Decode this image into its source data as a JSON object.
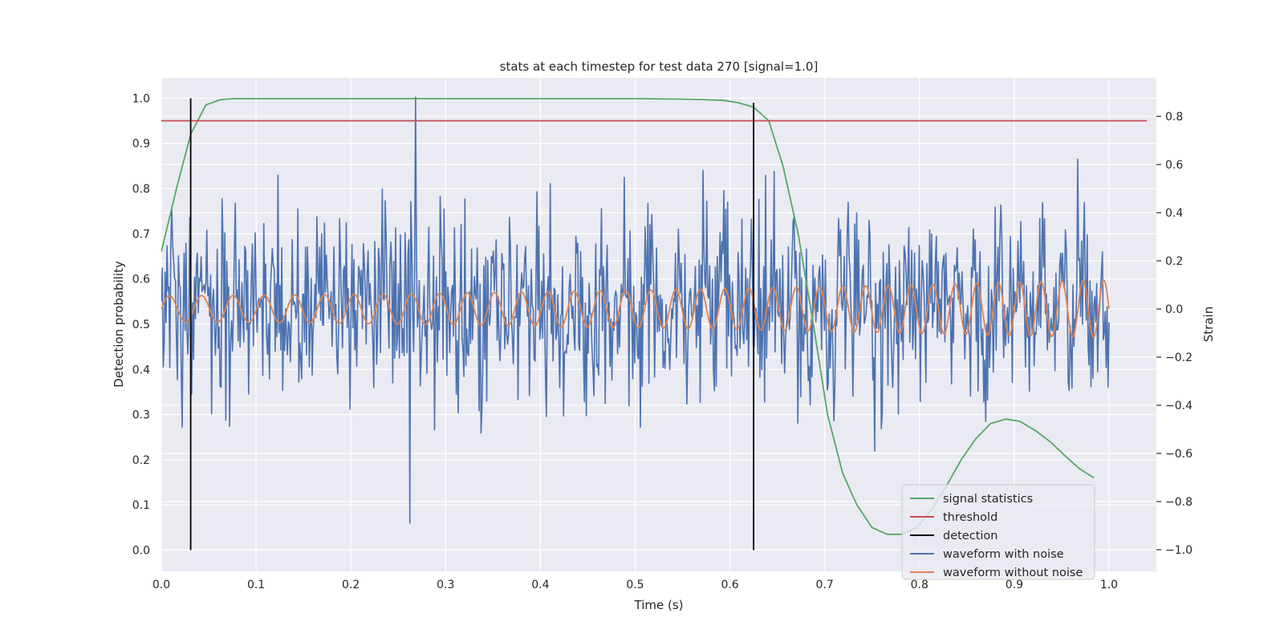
{
  "chart_data": {
    "type": "line",
    "title": "stats at each timestep for test data 270 [signal=1.0]",
    "xlabel": "Time (s)",
    "ylabel_left": "Detection probability",
    "ylabel_right": "Strain",
    "xlim": [
      0.0,
      1.05
    ],
    "ylim_left": [
      -0.047,
      1.045
    ],
    "ylim_right": [
      -1.09,
      0.96
    ],
    "x_ticks": [
      0.0,
      0.1,
      0.2,
      0.3,
      0.4,
      0.5,
      0.6,
      0.7,
      0.8,
      0.9,
      1.0
    ],
    "x_tick_labels": [
      "0.0",
      "0.1",
      "0.2",
      "0.3",
      "0.4",
      "0.5",
      "0.6",
      "0.7",
      "0.8",
      "0.9",
      "1.0"
    ],
    "y_left_ticks": [
      0.0,
      0.1,
      0.2,
      0.3,
      0.4,
      0.5,
      0.6,
      0.7,
      0.8,
      0.9,
      1.0
    ],
    "y_left_tick_labels": [
      "0.0",
      "0.1",
      "0.2",
      "0.3",
      "0.4",
      "0.5",
      "0.6",
      "0.7",
      "0.8",
      "0.9",
      "1.0"
    ],
    "y_right_ticks": [
      0.8,
      0.6,
      0.4,
      0.2,
      0.0,
      -0.2,
      -0.4,
      -0.6,
      -0.8,
      -1.0
    ],
    "y_right_tick_labels": [
      "0.8",
      "0.6",
      "0.4",
      "0.2",
      "0.0",
      "−0.2",
      "−0.4",
      "−0.6",
      "−0.8",
      "−1.0"
    ],
    "grid": true,
    "legend_position": "lower-right",
    "series": [
      {
        "name": "signal statistics",
        "axis": "left",
        "color": "#55a868",
        "x": [
          0.0,
          0.016,
          0.031,
          0.047,
          0.063,
          0.078,
          0.094,
          0.11,
          0.2,
          0.3,
          0.4,
          0.5,
          0.55,
          0.57,
          0.594,
          0.609,
          0.625,
          0.641,
          0.656,
          0.672,
          0.688,
          0.703,
          0.719,
          0.734,
          0.75,
          0.766,
          0.781,
          0.797,
          0.813,
          0.828,
          0.844,
          0.859,
          0.875,
          0.891,
          0.906,
          0.922,
          0.938,
          0.953,
          0.969,
          0.984
        ],
        "y": [
          0.66,
          0.8,
          0.92,
          0.985,
          0.997,
          0.999,
          0.999,
          0.999,
          0.999,
          0.999,
          0.999,
          0.999,
          0.998,
          0.997,
          0.995,
          0.99,
          0.98,
          0.95,
          0.85,
          0.7,
          0.5,
          0.3,
          0.17,
          0.1,
          0.05,
          0.035,
          0.035,
          0.05,
          0.09,
          0.14,
          0.2,
          0.245,
          0.28,
          0.29,
          0.285,
          0.265,
          0.24,
          0.21,
          0.18,
          0.16
        ]
      },
      {
        "name": "threshold",
        "axis": "left",
        "color": "#c44e52",
        "x": [
          0.0,
          1.04
        ],
        "y": [
          0.95,
          0.95
        ]
      },
      {
        "name": "detection",
        "axis": "left",
        "color": "#000000",
        "segments": [
          {
            "x": 0.031,
            "y0": 0.0,
            "y1": 1.0
          },
          {
            "x": 0.625,
            "y0": 0.0,
            "y1": 0.99
          }
        ]
      },
      {
        "name": "waveform with noise",
        "axis": "right",
        "color": "#4c72b0",
        "x_start": 0.0,
        "x_end": 1.0,
        "points": 1000,
        "noise_std": 0.19,
        "y_range": [
          -0.89,
          0.88
        ],
        "peak": {
          "x": 0.268,
          "y": 0.88
        },
        "min": {
          "x": 0.262,
          "y": -0.89
        }
      },
      {
        "name": "waveform without noise",
        "axis": "right",
        "color": "#dd8452",
        "x_start": 0.0,
        "x_end": 1.0,
        "freq_start": 29.0,
        "freq_end": 46.0,
        "amp_start": 0.055,
        "amp_end": 0.12
      }
    ]
  }
}
